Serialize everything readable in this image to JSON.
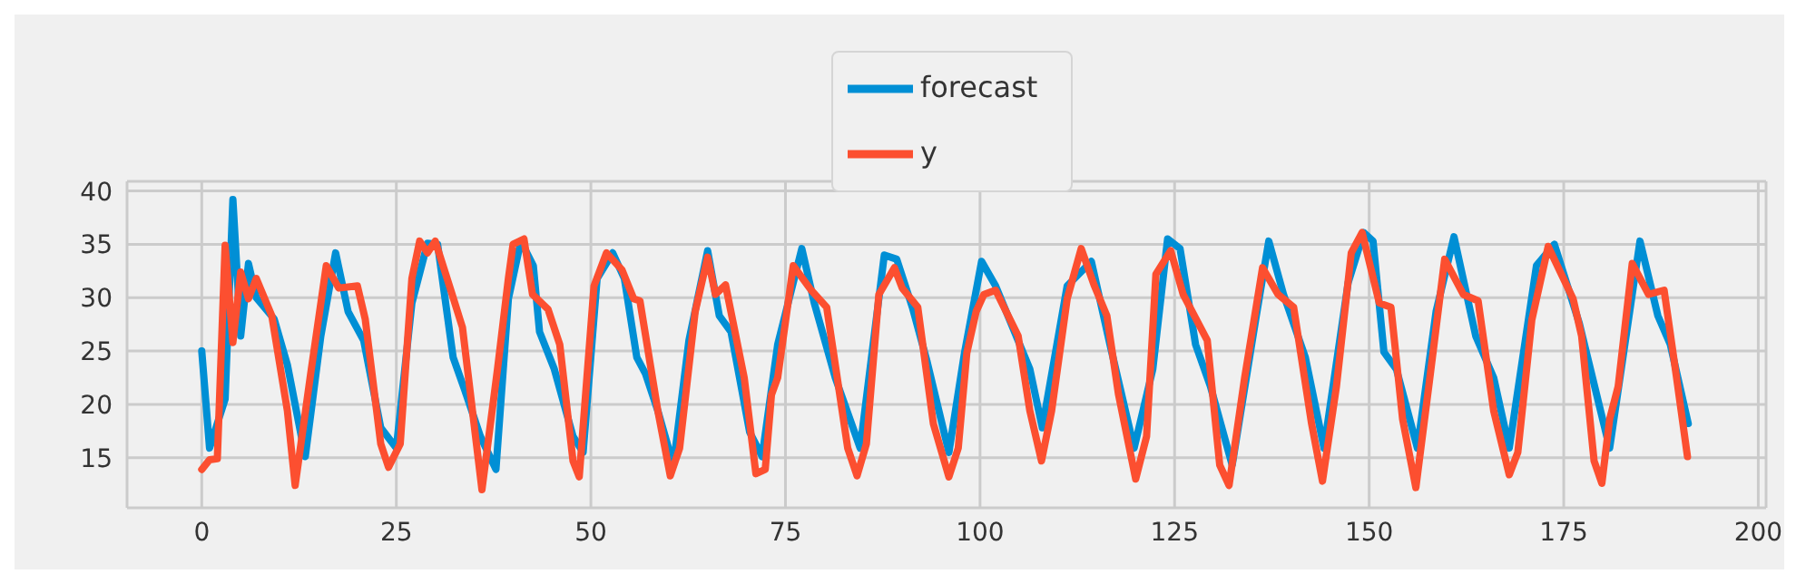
{
  "chart_data": {
    "type": "line",
    "xlim": [
      -9.6,
      201
    ],
    "xticks": [
      0,
      25,
      50,
      75,
      100,
      125,
      150,
      175,
      200
    ],
    "ylim": [
      10.3,
      40.9
    ],
    "yticks": [
      15,
      20,
      25,
      30,
      35,
      40
    ],
    "grid": true,
    "legend": "top",
    "marker": "none",
    "line_style": "solid",
    "series": [
      {
        "name": "forecast",
        "color": "#008fd5",
        "x": [
          0,
          1,
          3,
          4,
          5,
          6,
          7,
          9.3,
          11,
          13.3,
          15.3,
          17.2,
          18.8,
          20.8,
          23,
          25,
          27,
          29,
          30.3,
          32.3,
          34,
          35.8,
          37.8,
          39.4,
          41,
          42.6,
          43.4,
          45.3,
          47.7,
          49,
          50.8,
          52.8,
          54.3,
          55.9,
          57,
          58.6,
          60.6,
          62.6,
          65,
          66.5,
          68,
          70.4,
          72,
          74,
          77.1,
          78.7,
          81.4,
          84.6,
          87.7,
          89.3,
          91.3,
          93.2,
          96,
          98,
          100.2,
          102,
          106.4,
          108,
          111.2,
          114.3,
          116.7,
          119.8,
          122.2,
          124.1,
          125.7,
          127.7,
          129.6,
          132.4,
          135.5,
          137.1,
          139,
          141.8,
          144.2,
          147.3,
          149.3,
          150.5,
          151.9,
          153.5,
          156.2,
          158.6,
          160.9,
          163.7,
          166,
          168,
          171.5,
          173.8,
          177,
          180.9,
          184.8,
          187.1,
          188.7,
          191
        ],
        "values": [
          25,
          15.9,
          20.5,
          39.2,
          26.4,
          33.2,
          30,
          28,
          23.7,
          15.1,
          26.4,
          34.2,
          28.7,
          26,
          17.8,
          15.9,
          29.5,
          35.1,
          35,
          24.4,
          20.9,
          17,
          13.9,
          29.9,
          35.3,
          33,
          26.8,
          23.3,
          17,
          15.5,
          31.8,
          34.2,
          31.8,
          24.4,
          22.9,
          19.4,
          14.3,
          26,
          34.4,
          28.3,
          26.8,
          17.4,
          15.1,
          25.6,
          34.6,
          29.5,
          22.5,
          15.9,
          34,
          33.6,
          29.1,
          24,
          15.5,
          24.8,
          33.4,
          31.1,
          23.3,
          17.8,
          31.1,
          33.4,
          25.6,
          15.9,
          23.3,
          35.5,
          34.6,
          25.6,
          21.7,
          14.3,
          28.3,
          35.3,
          30.3,
          24.4,
          15.9,
          31.4,
          36.1,
          35.3,
          24.9,
          23.3,
          15.9,
          28.7,
          35.7,
          26.4,
          22.5,
          15.9,
          33,
          35,
          27.6,
          15.9,
          35.3,
          28.3,
          25.6,
          18.2
        ]
      },
      {
        "name": "y",
        "color": "#fc4f30",
        "x": [
          0,
          1,
          2,
          3,
          4,
          5,
          6,
          7,
          9,
          11,
          12,
          14,
          16,
          17.6,
          20,
          21,
          23,
          24,
          25.5,
          27,
          28,
          29,
          30,
          32,
          33.5,
          36,
          38,
          39.4,
          40,
          41.4,
          42.5,
          44.5,
          46,
          47.7,
          48.5,
          50.4,
          52,
          54,
          55.5,
          56.3,
          58.6,
          60.2,
          61.4,
          63.4,
          65,
          66,
          67.3,
          69.7,
          71.2,
          72.4,
          73.2,
          74,
          76,
          78.3,
          80.3,
          83,
          84.2,
          85.4,
          87,
          89,
          90,
          92,
          94,
          96,
          97.2,
          98.3,
          99.5,
          100.5,
          102,
          104.9,
          106.4,
          107.9,
          109.2,
          111.2,
          113,
          114.7,
          116.3,
          117.8,
          120,
          121.4,
          122.6,
          124.5,
          126.1,
          129.2,
          130.8,
          132,
          134,
          136.3,
          138.3,
          140.3,
          142.6,
          144,
          145.8,
          147.7,
          149.1,
          151.3,
          152.8,
          154.3,
          156,
          157.8,
          159.7,
          162.1,
          164,
          166,
          168,
          169.1,
          170.9,
          173,
          176.2,
          177.3,
          178.9,
          179.9,
          180.9,
          182,
          183.8,
          185.9,
          187.9,
          189.5,
          190.9
        ],
        "values": [
          13.9,
          14.8,
          14.9,
          34.9,
          25.8,
          32.4,
          29.9,
          31.8,
          28.3,
          19.4,
          12.4,
          22.9,
          33,
          30.9,
          31.1,
          28,
          16.3,
          14.1,
          16.3,
          31.8,
          35.3,
          34.2,
          35.3,
          30.7,
          27.2,
          12,
          23.3,
          31.8,
          35,
          35.5,
          30.3,
          28.9,
          25.6,
          14.7,
          13.2,
          31.1,
          34.2,
          32.6,
          29.9,
          29.7,
          19.4,
          13.3,
          15.9,
          28.7,
          33.8,
          30.3,
          31.2,
          22.5,
          13.5,
          13.9,
          20.9,
          22.5,
          33,
          30.7,
          29.1,
          15.9,
          13.3,
          16.3,
          30.3,
          32.8,
          30.9,
          29.1,
          18.2,
          13.2,
          15.9,
          24.8,
          28.7,
          30.3,
          30.7,
          26.4,
          19.4,
          14.7,
          19.4,
          29.9,
          34.6,
          31.1,
          28.3,
          20.9,
          13,
          17,
          32.2,
          34.4,
          30.3,
          26,
          14.3,
          12.4,
          22.5,
          32.8,
          30.3,
          29.1,
          18.2,
          12.8,
          21.7,
          34.2,
          36.1,
          29.5,
          29.1,
          18.6,
          12.2,
          22.5,
          33.6,
          30.3,
          29.7,
          19.4,
          13.4,
          15.5,
          27.9,
          34.8,
          29.9,
          26.4,
          14.7,
          12.6,
          18.6,
          21.7,
          33.2,
          30.3,
          30.7,
          22.5,
          15.1
        ]
      }
    ]
  }
}
